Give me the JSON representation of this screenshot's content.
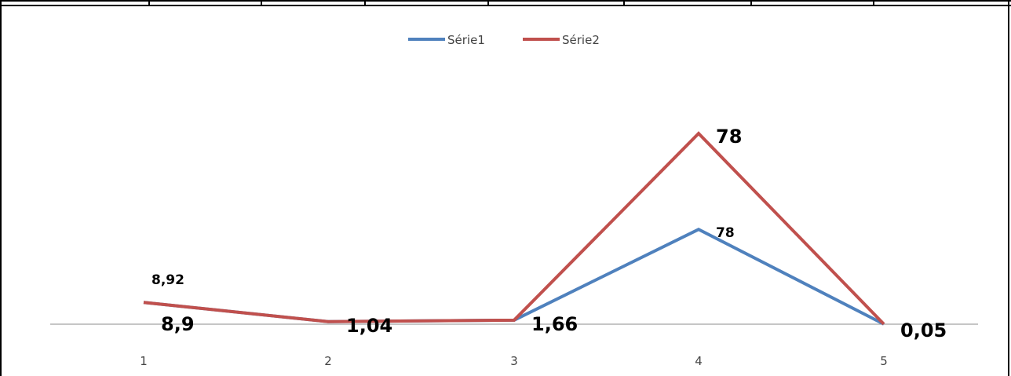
{
  "chart_data": {
    "type": "line",
    "categories": [
      "1",
      "2",
      "3",
      "4",
      "5"
    ],
    "series": [
      {
        "name": "Série1",
        "color": "#4F81BD",
        "values": [
          8.9,
          1.04,
          1.66,
          78,
          0.05
        ],
        "labels": [
          "8,9",
          "1,04",
          "1,66",
          "78",
          "0,05"
        ]
      },
      {
        "name": "Série2",
        "color": "#C0504D",
        "values": [
          8.92,
          1.04,
          1.66,
          78,
          0.05
        ],
        "labels": [
          "8,92",
          "",
          "",
          "78",
          ""
        ]
      }
    ],
    "legend_position": "top",
    "grid": false
  }
}
